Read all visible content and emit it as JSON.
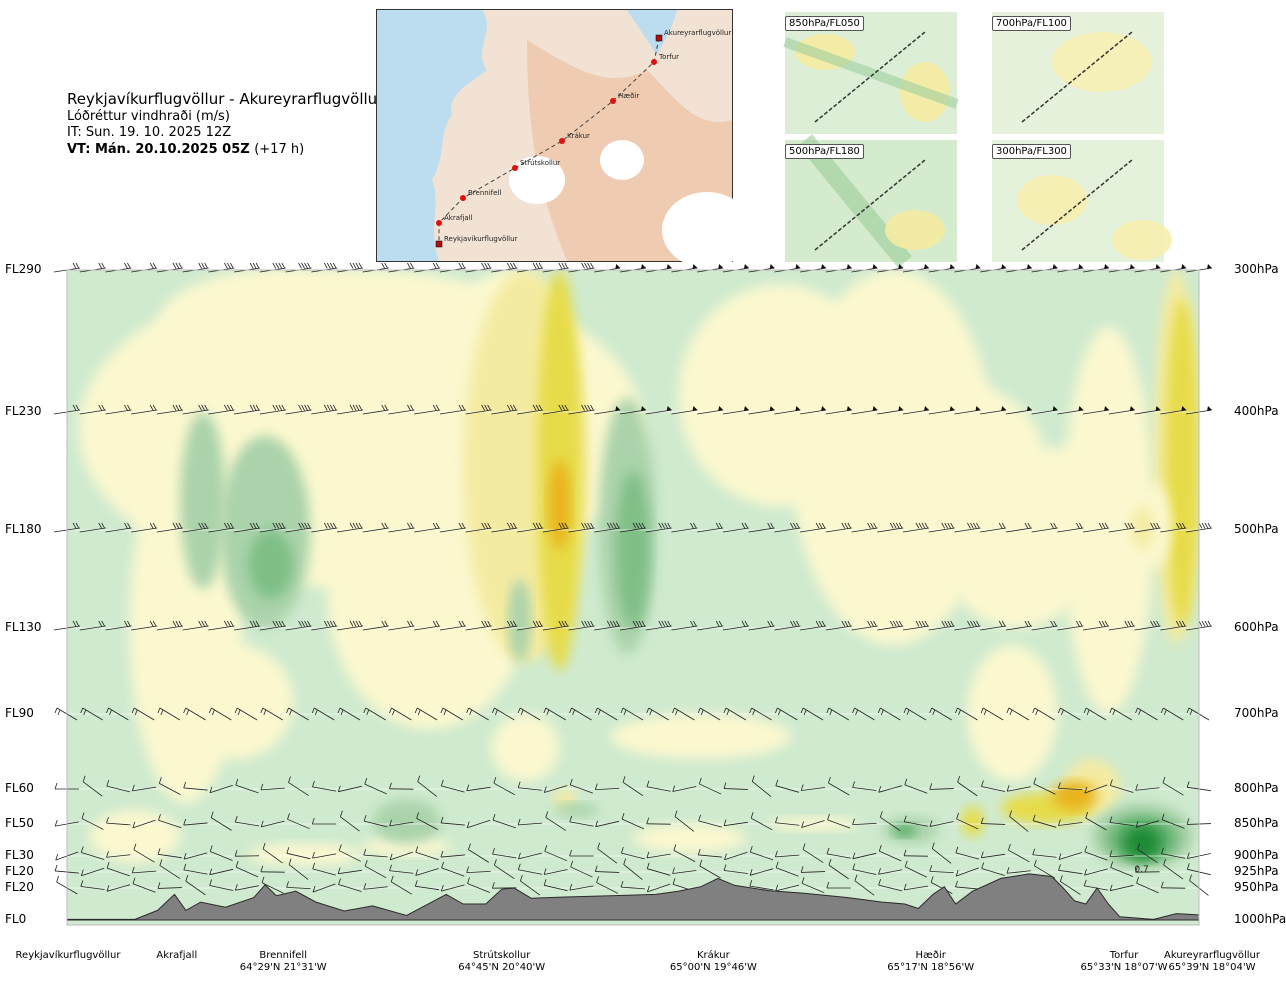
{
  "header": {
    "route": "Reykjavíkurflugvöllur - Akureyrarflugvöllur",
    "parameter": "Lóðréttur vindhraði (m/s)",
    "issue_time": "IT: Sun. 19. 10. 2025 12Z",
    "valid_prefix": "VT:",
    "valid_time": "Mán. 20.10.2025 05Z",
    "lead_time": "(+17 h)"
  },
  "route_map": {
    "colors": {
      "sea": "#bcdcf0",
      "land": "#f3d8c2",
      "ice": "#ffffff",
      "route": "#444444",
      "point": "#e01010"
    },
    "points": [
      {
        "name": "Akureyrarflugvöllur",
        "kind": "airport"
      },
      {
        "name": "Torfur",
        "kind": "waypoint"
      },
      {
        "name": "Hæðir",
        "kind": "waypoint"
      },
      {
        "name": "Krákur",
        "kind": "waypoint"
      },
      {
        "name": "Strútskollur",
        "kind": "waypoint"
      },
      {
        "name": "Brennifell",
        "kind": "waypoint"
      },
      {
        "name": "Akrafjall",
        "kind": "waypoint"
      },
      {
        "name": "Reykjavíkurflugvöllur",
        "kind": "airport"
      }
    ]
  },
  "level_maps": [
    {
      "label": "850hPa/FL050"
    },
    {
      "label": "700hPa/FL100"
    },
    {
      "label": "500hPa/FL180"
    },
    {
      "label": "300hPa/FL300"
    }
  ],
  "chart_data": {
    "type": "heatmap",
    "title": "Reykjavíkurflugvöllur - Akureyrarflugvöllur",
    "variable": "Lóðréttur vindhraði (m/s)",
    "x_range": [
      0,
      100
    ],
    "pressure_range_hpa": [
      1000,
      300
    ],
    "y_left_ticks": [
      {
        "label": "FL290",
        "p": 300
      },
      {
        "label": "FL230",
        "p": 400
      },
      {
        "label": "FL180",
        "p": 500
      },
      {
        "label": "FL130",
        "p": 600
      },
      {
        "label": "FL90",
        "p": 700
      },
      {
        "label": "FL60",
        "p": 800
      },
      {
        "label": "FL50",
        "p": 850
      },
      {
        "label": "FL30",
        "p": 900
      },
      {
        "label": "FL20",
        "p": 925
      },
      {
        "label": "FL20",
        "p": 950
      },
      {
        "label": "FL0",
        "p": 1000
      }
    ],
    "y_right_ticks": [
      "300hPa",
      "400hPa",
      "500hPa",
      "600hPa",
      "700hPa",
      "800hPa",
      "850hPa",
      "900hPa",
      "925hPa",
      "950hPa",
      "1000hPa"
    ],
    "stations": [
      {
        "name": "Reykjavíkurflugvöllur",
        "coord": "",
        "x": 0
      },
      {
        "name": "Akrafjall",
        "coord": "",
        "x": 9.7
      },
      {
        "name": "Brennifell",
        "coord": "64°29'N 21°31'W",
        "x": 19.1
      },
      {
        "name": "Strútskollur",
        "coord": "64°45'N 20°40'W",
        "x": 38.4
      },
      {
        "name": "Krákur",
        "coord": "65°00'N 19°46'W",
        "x": 57.1
      },
      {
        "name": "Hæðir",
        "coord": "65°17'N 18°56'W",
        "x": 76.3
      },
      {
        "name": "Torfur",
        "coord": "65°33'N 18°07'W",
        "x": 94.6
      },
      {
        "name": "Akureyrarflugvöllur",
        "coord": "65°39'N 18°04'W",
        "x": 100
      }
    ],
    "terrain_pressure": [
      [
        0,
        999
      ],
      [
        6,
        999
      ],
      [
        8,
        985
      ],
      [
        9.5,
        960
      ],
      [
        10.5,
        985
      ],
      [
        11.8,
        972
      ],
      [
        14,
        980
      ],
      [
        16.5,
        965
      ],
      [
        17.5,
        945
      ],
      [
        18.5,
        962
      ],
      [
        20.2,
        955
      ],
      [
        22,
        972
      ],
      [
        24.5,
        986
      ],
      [
        27,
        978
      ],
      [
        30,
        993
      ],
      [
        33.5,
        960
      ],
      [
        35,
        975
      ],
      [
        37,
        975
      ],
      [
        38.4,
        952
      ],
      [
        39.5,
        950
      ],
      [
        41,
        966
      ],
      [
        44,
        964
      ],
      [
        48,
        962
      ],
      [
        52,
        960
      ],
      [
        54,
        955
      ],
      [
        56,
        948
      ],
      [
        57.5,
        935
      ],
      [
        59,
        946
      ],
      [
        62,
        954
      ],
      [
        65,
        958
      ],
      [
        69,
        965
      ],
      [
        72,
        972
      ],
      [
        74,
        975
      ],
      [
        75.2,
        982
      ],
      [
        76.5,
        960
      ],
      [
        77.5,
        948
      ],
      [
        78.5,
        975
      ],
      [
        80,
        955
      ],
      [
        82.5,
        935
      ],
      [
        85,
        928
      ],
      [
        87,
        932
      ],
      [
        88,
        950
      ],
      [
        89,
        970
      ],
      [
        90,
        975
      ],
      [
        91,
        950
      ],
      [
        92,
        975
      ],
      [
        93,
        995
      ],
      [
        96,
        999
      ],
      [
        98,
        990
      ],
      [
        100,
        992
      ]
    ],
    "contour_levels_ms": [
      -0.7,
      -0.5,
      -0.3,
      -0.2,
      -0.1,
      0.1,
      0.2,
      0.3,
      0.5,
      0.7
    ],
    "colors": {
      "-0.7": "#1e8a35",
      "-0.5": "#4fa95e",
      "-0.3": "#7fbf86",
      "-0.2": "#aad3ab",
      "-0.1": "#cfeacf",
      "0": "#eef8e6",
      "0.1": "#fbf8cf",
      "0.2": "#f4eba2",
      "0.3": "#e6dc4a",
      "0.5": "#e9b41e",
      "0.7": "#e4661c"
    },
    "annotations": [
      {
        "text": "0.7",
        "x": 95,
        "p": 920
      }
    ],
    "wind_barb_levels_hpa": [
      300,
      400,
      500,
      600,
      700,
      800,
      850,
      900,
      925,
      950
    ]
  }
}
